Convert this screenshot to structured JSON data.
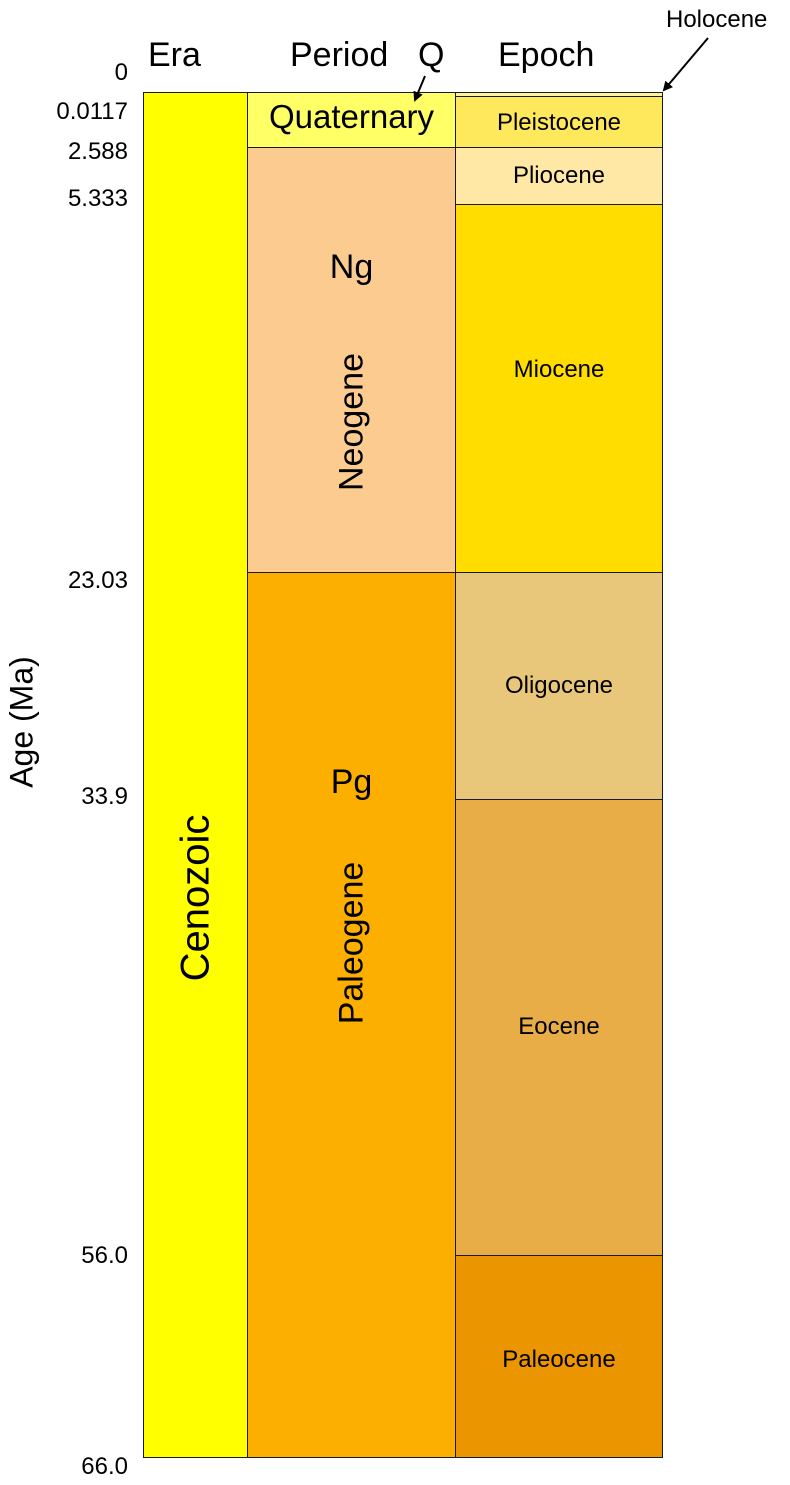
{
  "axis_label": "Age (Ma)",
  "headers": {
    "era": "Era",
    "period": "Period",
    "epoch": "Epoch"
  },
  "age_ticks": [
    "0",
    "0.0117",
    "2.588",
    "5.333",
    "23.03",
    "33.9",
    "56.0",
    "66.0"
  ],
  "era": {
    "name": "Cenozoic",
    "color": "#FFFF00"
  },
  "periods": {
    "quaternary": {
      "name": "Quaternary",
      "abbr": "Q",
      "color": "#FFFF66"
    },
    "neogene": {
      "name": "Neogene",
      "abbr": "Ng",
      "color": "#FBCB8F"
    },
    "paleogene": {
      "name": "Paleogene",
      "abbr": "Pg",
      "color": "#FDAF00"
    }
  },
  "epochs": {
    "holocene": {
      "name": "Holocene"
    },
    "pleistocene": {
      "name": "Pleistocene",
      "color": "#FEE85C"
    },
    "pliocene": {
      "name": "Pliocene",
      "color": "#FFE8A6"
    },
    "miocene": {
      "name": "Miocene",
      "color": "#FFDD00"
    },
    "oligocene": {
      "name": "Oligocene",
      "color": "#E9C77A"
    },
    "eocene": {
      "name": "Eocene",
      "color": "#E9AD47"
    },
    "paleocene": {
      "name": "Paleocene",
      "color": "#EB9500"
    }
  }
}
